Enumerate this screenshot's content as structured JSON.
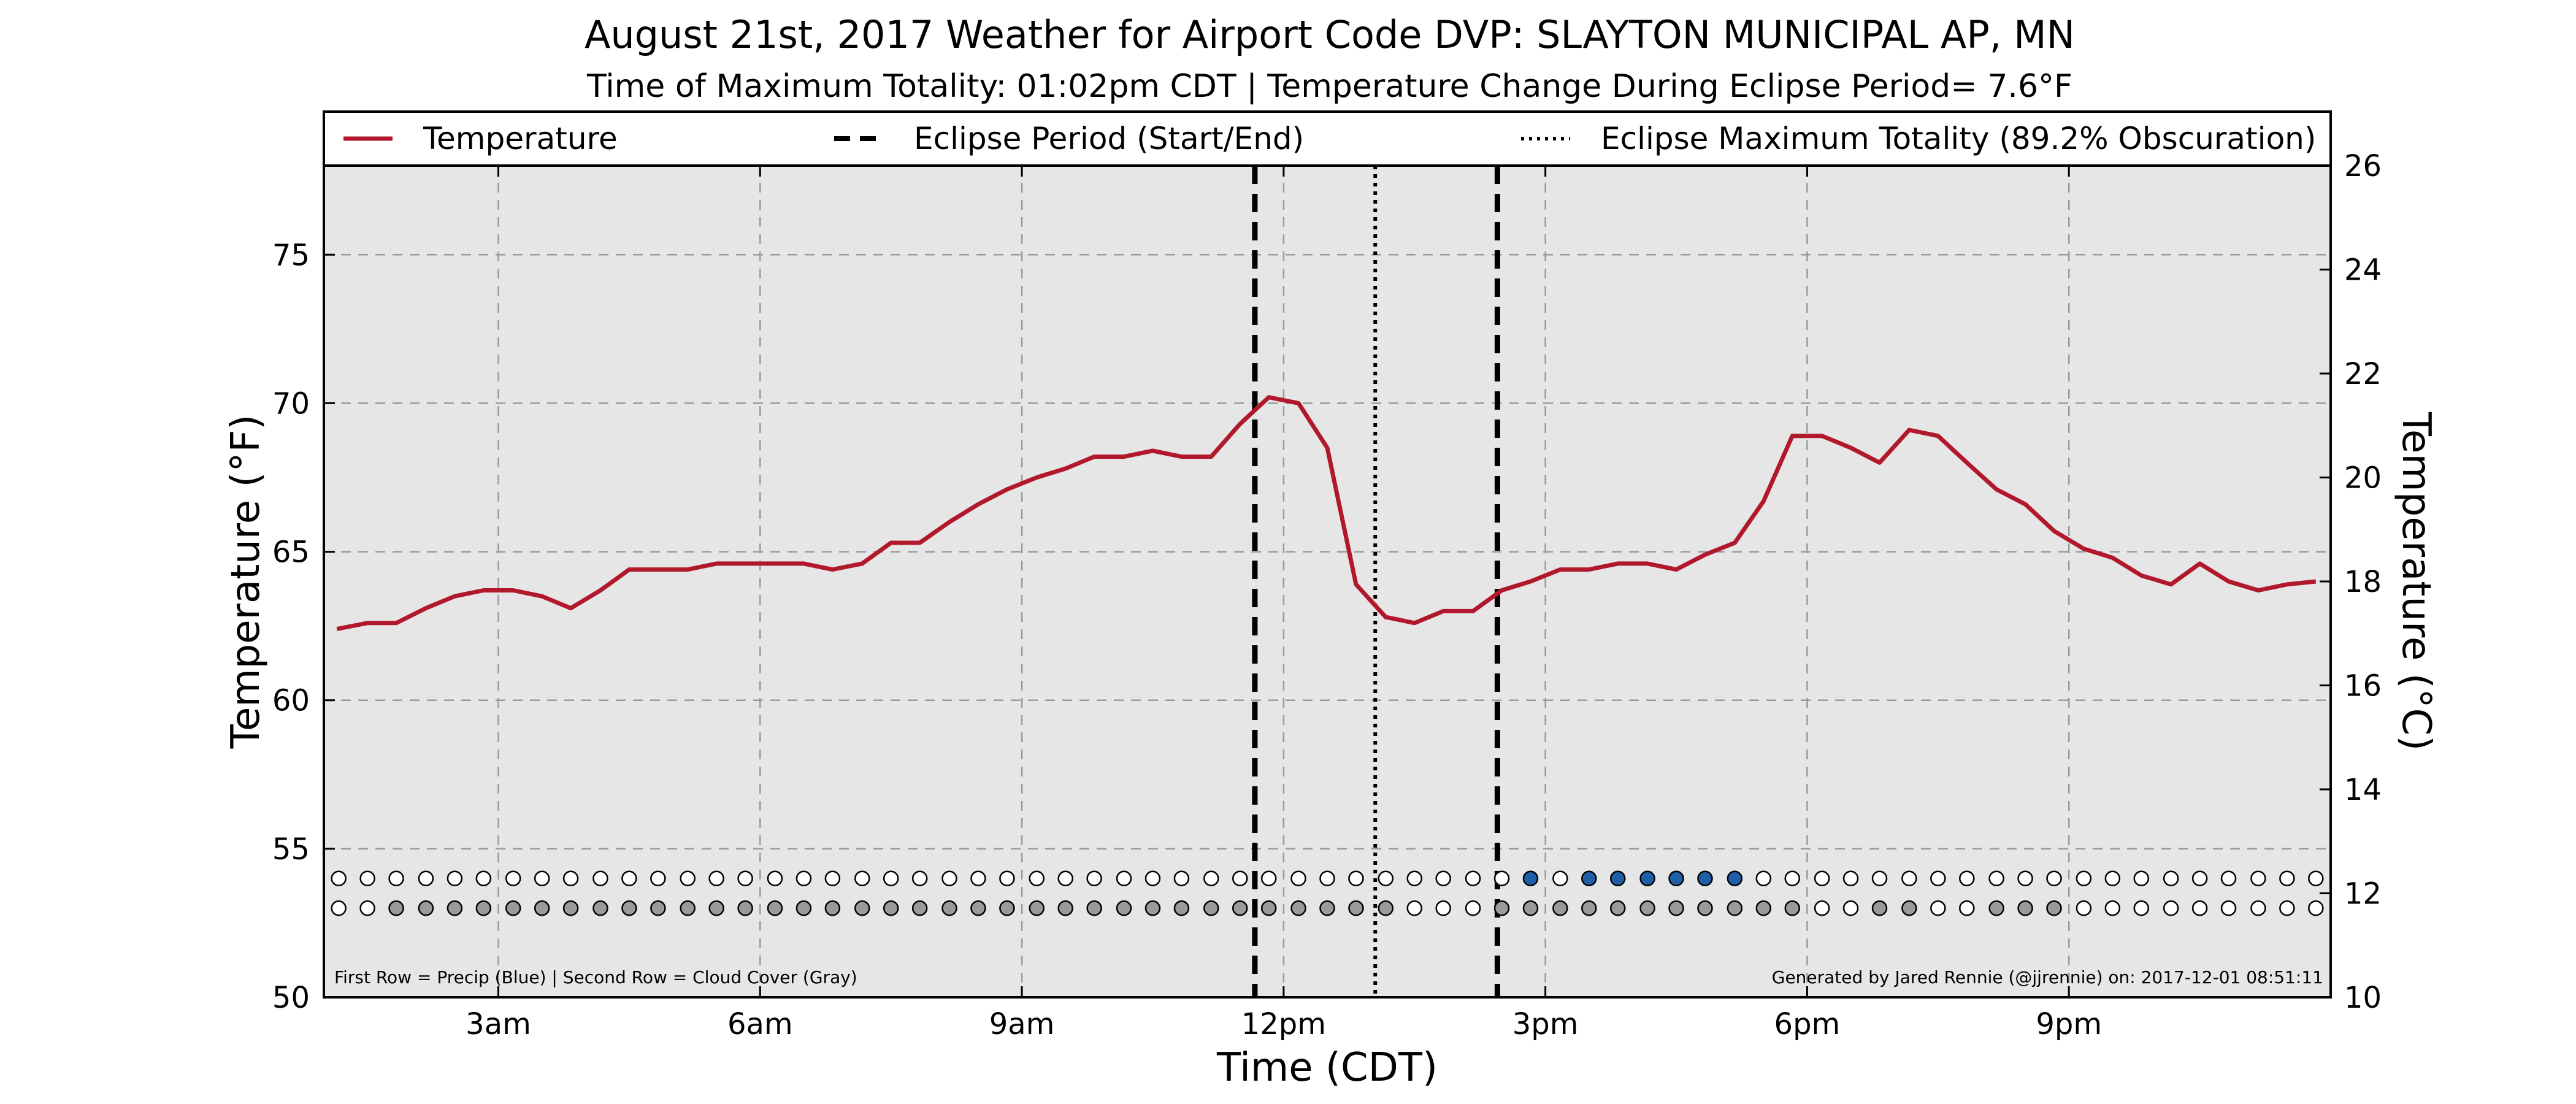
{
  "chart_data": {
    "type": "line",
    "title": "August 21st, 2017 Weather for Airport Code DVP: SLAYTON MUNICIPAL AP, MN",
    "subtitle": "Time of Maximum Totality: 01:02pm CDT | Temperature Change During Eclipse Period= 7.6°F",
    "xlabel": "Time (CDT)",
    "ylabel": "Temperature (°F)",
    "ylabel_right": "Temperature (°C)",
    "xlim": [
      1.0,
      24.0
    ],
    "ylim": [
      50,
      78
    ],
    "ylim_right": [
      10,
      26
    ],
    "x_ticks": [
      {
        "x": 3,
        "label": "3am"
      },
      {
        "x": 6,
        "label": "6am"
      },
      {
        "x": 9,
        "label": "9am"
      },
      {
        "x": 12,
        "label": "12pm"
      },
      {
        "x": 15,
        "label": "3pm"
      },
      {
        "x": 18,
        "label": "6pm"
      },
      {
        "x": 21,
        "label": "9pm"
      }
    ],
    "y_ticks": [
      50,
      55,
      60,
      65,
      70,
      75
    ],
    "y_ticks_right": [
      10,
      12,
      14,
      16,
      18,
      20,
      22,
      24,
      26
    ],
    "grid": true,
    "legend": {
      "placement": "top",
      "entries": [
        {
          "label": "Temperature",
          "style": "solid"
        },
        {
          "label": "Eclipse Period (Start/End)",
          "style": "dashed"
        },
        {
          "label": "Eclipse Maximum Totality (89.2% Obscuration)",
          "style": "dotted"
        }
      ]
    },
    "series": [
      {
        "name": "Temperature",
        "color": "#b2182b",
        "x": [
          1.15,
          1.5,
          1.83,
          2.17,
          2.5,
          2.83,
          3.17,
          3.5,
          3.83,
          4.17,
          4.5,
          4.83,
          5.17,
          5.5,
          5.83,
          6.17,
          6.5,
          6.83,
          7.17,
          7.5,
          7.83,
          8.17,
          8.5,
          8.83,
          9.17,
          9.5,
          9.83,
          10.17,
          10.5,
          10.83,
          11.17,
          11.5,
          11.83,
          12.17,
          12.5,
          12.83,
          13.17,
          13.5,
          13.83,
          14.17,
          14.5,
          14.83,
          15.17,
          15.5,
          15.83,
          16.17,
          16.5,
          16.83,
          17.17,
          17.5,
          17.83,
          18.17,
          18.5,
          18.83,
          19.17,
          19.5,
          19.83,
          20.17,
          20.5,
          20.83,
          21.17,
          21.5,
          21.83,
          22.17,
          22.5,
          22.83,
          23.17,
          23.5,
          23.83
        ],
        "values": [
          62.4,
          62.6,
          62.6,
          63.1,
          63.5,
          63.7,
          63.7,
          63.5,
          63.1,
          63.7,
          64.4,
          64.4,
          64.4,
          64.6,
          64.6,
          64.6,
          64.6,
          64.4,
          64.6,
          65.3,
          65.3,
          66.0,
          66.6,
          67.1,
          67.5,
          67.8,
          68.2,
          68.2,
          68.4,
          68.2,
          68.2,
          69.3,
          70.2,
          70.0,
          68.5,
          63.9,
          62.8,
          62.6,
          63.0,
          63.0,
          63.7,
          64.0,
          64.4,
          64.4,
          64.6,
          64.6,
          64.4,
          64.9,
          65.3,
          66.7,
          68.9,
          68.9,
          68.5,
          68.0,
          69.1,
          68.9,
          68.0,
          67.1,
          66.6,
          65.7,
          65.1,
          64.8,
          64.2,
          63.9,
          64.6,
          64.0,
          63.7,
          63.9,
          64.0
        ]
      }
    ],
    "reference_lines": [
      {
        "x": 11.67,
        "style": "dashed",
        "label": "Eclipse Start"
      },
      {
        "x": 13.05,
        "style": "dotted",
        "label": "Maximum Totality"
      },
      {
        "x": 14.45,
        "style": "dashed",
        "label": "Eclipse End"
      }
    ],
    "indicator_rows": {
      "x": [
        1.17,
        1.5,
        1.83,
        2.17,
        2.5,
        2.83,
        3.17,
        3.5,
        3.83,
        4.17,
        4.5,
        4.83,
        5.17,
        5.5,
        5.83,
        6.17,
        6.5,
        6.83,
        7.17,
        7.5,
        7.83,
        8.17,
        8.5,
        8.83,
        9.17,
        9.5,
        9.83,
        10.17,
        10.5,
        10.83,
        11.17,
        11.5,
        11.83,
        12.17,
        12.5,
        12.83,
        13.17,
        13.5,
        13.83,
        14.17,
        14.5,
        14.83,
        15.17,
        15.5,
        15.83,
        16.17,
        16.5,
        16.83,
        17.17,
        17.5,
        17.83,
        18.17,
        18.5,
        18.83,
        19.17,
        19.5,
        19.83,
        20.17,
        20.5,
        20.83,
        21.17,
        21.5,
        21.83,
        22.17,
        22.5,
        22.83,
        23.17,
        23.5,
        23.83
      ],
      "precip": [
        0,
        0,
        0,
        0,
        0,
        0,
        0,
        0,
        0,
        0,
        0,
        0,
        0,
        0,
        0,
        0,
        0,
        0,
        0,
        0,
        0,
        0,
        0,
        0,
        0,
        0,
        0,
        0,
        0,
        0,
        0,
        0,
        0,
        0,
        0,
        0,
        0,
        0,
        0,
        0,
        0,
        1,
        0,
        1,
        1,
        1,
        1,
        1,
        1,
        0,
        0,
        0,
        0,
        0,
        0,
        0,
        0,
        0,
        0,
        0,
        0,
        0,
        0,
        0,
        0,
        0,
        0,
        0,
        0
      ],
      "cloud": [
        0,
        0,
        1,
        1,
        1,
        1,
        1,
        1,
        1,
        1,
        1,
        1,
        1,
        1,
        1,
        1,
        1,
        1,
        1,
        1,
        1,
        1,
        1,
        1,
        1,
        1,
        1,
        1,
        1,
        1,
        1,
        1,
        1,
        1,
        1,
        1,
        1,
        0,
        0,
        0,
        1,
        1,
        1,
        1,
        1,
        1,
        1,
        1,
        1,
        1,
        1,
        0,
        0,
        1,
        1,
        0,
        0,
        1,
        1,
        1,
        0,
        0,
        0,
        0,
        0,
        0,
        0,
        0,
        0
      ],
      "precip_y": 54,
      "cloud_y": 53,
      "precip_color": "#1f5fa8",
      "cloud_color": "#9a9a9a"
    },
    "footnote_left": "First Row = Precip (Blue) | Second Row = Cloud Cover (Gray)",
    "footnote_right": "Generated by Jared Rennie (@jjrennie) on: 2017-12-01 08:51:11",
    "colors": {
      "plot_background": "#e6e6e6",
      "grid": "#9a9a9a"
    }
  }
}
